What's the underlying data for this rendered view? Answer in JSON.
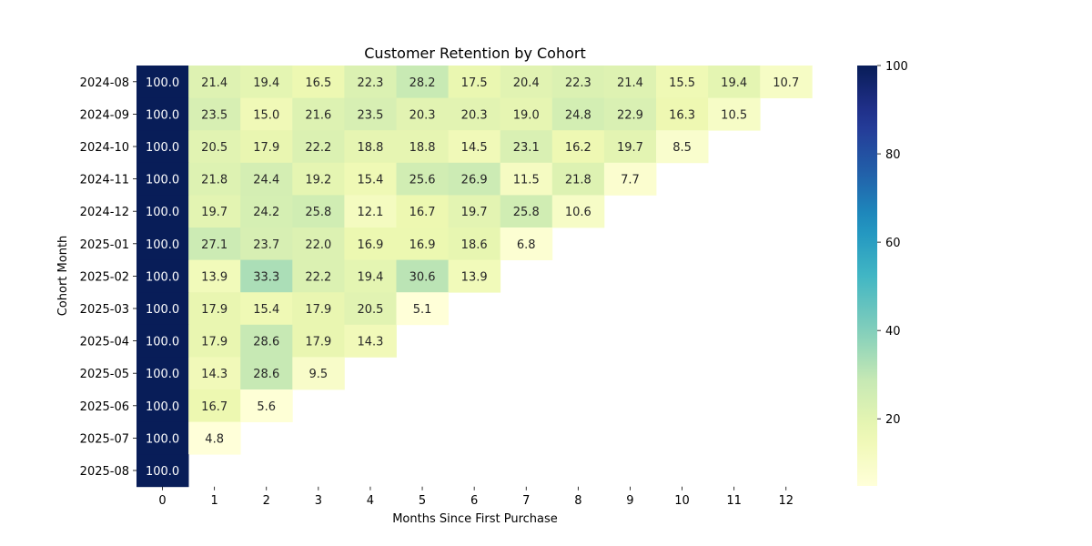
{
  "chart_data": {
    "type": "heatmap",
    "title": "Customer Retention by Cohort",
    "xlabel": "Months Since First Purchase",
    "ylabel": "Cohort Month",
    "x": [
      "0",
      "1",
      "2",
      "3",
      "4",
      "5",
      "6",
      "7",
      "8",
      "9",
      "10",
      "11",
      "12"
    ],
    "y": [
      "2024-08",
      "2024-09",
      "2024-10",
      "2024-11",
      "2024-12",
      "2025-01",
      "2025-02",
      "2025-03",
      "2025-04",
      "2025-05",
      "2025-06",
      "2025-07",
      "2025-08"
    ],
    "values": [
      [
        100.0,
        21.4,
        19.4,
        16.5,
        22.3,
        28.2,
        17.5,
        20.4,
        22.3,
        21.4,
        15.5,
        19.4,
        10.7
      ],
      [
        100.0,
        23.5,
        15.0,
        21.6,
        23.5,
        20.3,
        20.3,
        19.0,
        24.8,
        22.9,
        16.3,
        10.5,
        null
      ],
      [
        100.0,
        20.5,
        17.9,
        22.2,
        18.8,
        18.8,
        14.5,
        23.1,
        16.2,
        19.7,
        8.5,
        null,
        null
      ],
      [
        100.0,
        21.8,
        24.4,
        19.2,
        15.4,
        25.6,
        26.9,
        11.5,
        21.8,
        7.7,
        null,
        null,
        null
      ],
      [
        100.0,
        19.7,
        24.2,
        25.8,
        12.1,
        16.7,
        19.7,
        25.8,
        10.6,
        null,
        null,
        null,
        null
      ],
      [
        100.0,
        27.1,
        23.7,
        22.0,
        16.9,
        16.9,
        18.6,
        6.8,
        null,
        null,
        null,
        null,
        null
      ],
      [
        100.0,
        13.9,
        33.3,
        22.2,
        19.4,
        30.6,
        13.9,
        null,
        null,
        null,
        null,
        null,
        null
      ],
      [
        100.0,
        17.9,
        15.4,
        17.9,
        20.5,
        5.1,
        null,
        null,
        null,
        null,
        null,
        null,
        null
      ],
      [
        100.0,
        17.9,
        28.6,
        17.9,
        14.3,
        null,
        null,
        null,
        null,
        null,
        null,
        null,
        null
      ],
      [
        100.0,
        14.3,
        28.6,
        9.5,
        null,
        null,
        null,
        null,
        null,
        null,
        null,
        null,
        null
      ],
      [
        100.0,
        16.7,
        5.6,
        null,
        null,
        null,
        null,
        null,
        null,
        null,
        null,
        null,
        null
      ],
      [
        100.0,
        4.8,
        null,
        null,
        null,
        null,
        null,
        null,
        null,
        null,
        null,
        null,
        null
      ],
      [
        100.0,
        null,
        null,
        null,
        null,
        null,
        null,
        null,
        null,
        null,
        null,
        null,
        null
      ]
    ],
    "value_format": "one-decimal",
    "colormap": "YlGnBu",
    "colorbar": {
      "min": 4.8,
      "max": 100,
      "ticks": [
        20,
        40,
        60,
        80,
        100
      ]
    },
    "grid": false,
    "legend": "colorbar-right"
  }
}
